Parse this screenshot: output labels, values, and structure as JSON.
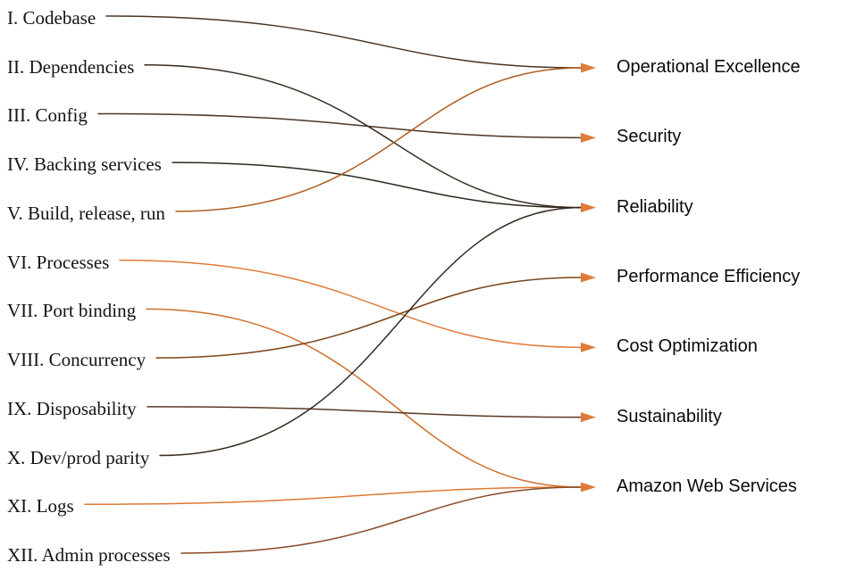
{
  "diagram": {
    "description": "Mapping of twelve-factor app methodology factors to AWS Well-Architected pillars",
    "left_items": [
      {
        "id": "codebase",
        "label": "I. Codebase"
      },
      {
        "id": "dependencies",
        "label": "II. Dependencies"
      },
      {
        "id": "config",
        "label": "III. Config"
      },
      {
        "id": "backing-services",
        "label": "IV. Backing services"
      },
      {
        "id": "build-release-run",
        "label": "V. Build, release, run"
      },
      {
        "id": "processes",
        "label": "VI. Processes"
      },
      {
        "id": "port-binding",
        "label": "VII. Port binding"
      },
      {
        "id": "concurrency",
        "label": "VIII. Concurrency"
      },
      {
        "id": "disposability",
        "label": "IX. Disposability"
      },
      {
        "id": "dev-prod-parity",
        "label": "X. Dev/prod parity"
      },
      {
        "id": "logs",
        "label": "XI. Logs"
      },
      {
        "id": "admin-processes",
        "label": "XII. Admin processes"
      }
    ],
    "right_items": [
      {
        "id": "operational-excellence",
        "label": "Operational Excellence"
      },
      {
        "id": "security",
        "label": "Security"
      },
      {
        "id": "reliability",
        "label": "Reliability"
      },
      {
        "id": "performance-efficiency",
        "label": "Performance Efficiency"
      },
      {
        "id": "cost-optimization",
        "label": "Cost Optimization"
      },
      {
        "id": "sustainability",
        "label": "Sustainability"
      },
      {
        "id": "amazon-web-services",
        "label": "Amazon Web Services"
      }
    ],
    "links": [
      {
        "from": "codebase",
        "to": "operational-excellence",
        "color": "#4a3423"
      },
      {
        "from": "dependencies",
        "to": "reliability",
        "color": "#3b2d20"
      },
      {
        "from": "config",
        "to": "security",
        "color": "#4c3526"
      },
      {
        "from": "backing-services",
        "to": "reliability",
        "color": "#2f261d"
      },
      {
        "from": "build-release-run",
        "to": "operational-excellence",
        "color": "#b05c1f"
      },
      {
        "from": "processes",
        "to": "cost-optimization",
        "color": "#e07b39"
      },
      {
        "from": "port-binding",
        "to": "amazon-web-services",
        "color": "#d06f2a"
      },
      {
        "from": "concurrency",
        "to": "performance-efficiency",
        "color": "#7c4418"
      },
      {
        "from": "disposability",
        "to": "sustainability",
        "color": "#5b3a24"
      },
      {
        "from": "dev-prod-parity",
        "to": "reliability",
        "color": "#35291f"
      },
      {
        "from": "logs",
        "to": "amazon-web-services",
        "color": "#dd7a33"
      },
      {
        "from": "admin-processes",
        "to": "amazon-web-services",
        "color": "#8a4a24"
      }
    ],
    "arrow_color": "#e07b39",
    "colors": {
      "background": "#ffffff",
      "text": "#000000"
    }
  }
}
